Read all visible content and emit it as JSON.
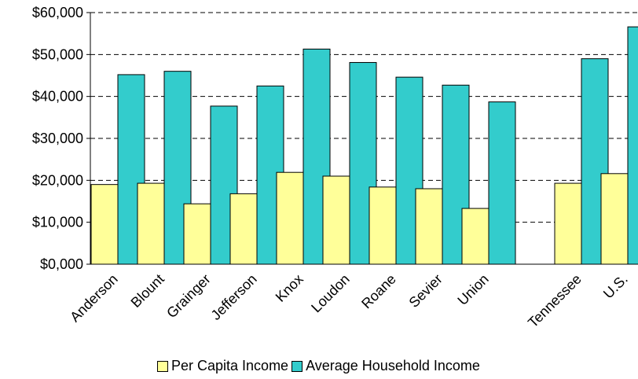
{
  "chart_data": {
    "type": "bar",
    "categories": [
      "Anderson",
      "Blount",
      "Grainger",
      "Jefferson",
      "Knox",
      "Loudon",
      "Roane",
      "Sevier",
      "Union",
      "",
      "Tennessee",
      "U.S."
    ],
    "series": [
      {
        "name": "Per Capita Income",
        "color": "#ffff99",
        "values": [
          19000,
          19300,
          14400,
          16800,
          21900,
          21000,
          18400,
          18000,
          13300,
          null,
          19300,
          21600
        ]
      },
      {
        "name": "Average Household Income",
        "color": "#33cccc",
        "values": [
          45200,
          46000,
          37700,
          42500,
          51300,
          48100,
          44600,
          42700,
          38700,
          null,
          49000,
          56600
        ]
      }
    ],
    "yticks": [
      "$0,000",
      "$10,000",
      "$20,000",
      "$30,000",
      "$40,000",
      "$50,000",
      "$60,000"
    ],
    "ylim": [
      0,
      60000
    ],
    "grid": true,
    "legend_position": "bottom"
  }
}
